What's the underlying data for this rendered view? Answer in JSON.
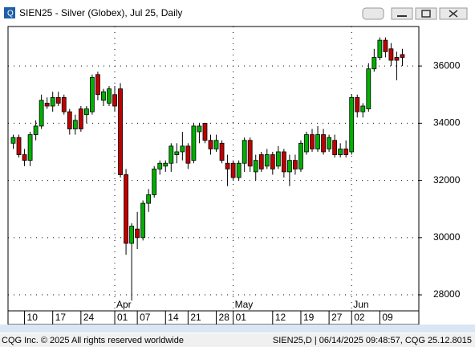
{
  "window": {
    "title": "SIEN25 - Silver (Globex), Jul 25, Daily"
  },
  "status": {
    "left": "CQG Inc. © 2025 All rights reserved worldwide",
    "right": "SIEN25,D | 06/14/2025 09:48:57, CQG 25.12.8015"
  },
  "chart_data": {
    "type": "candlestick",
    "categories": [
      null,
      null,
      "10",
      null,
      null,
      null,
      null,
      "17",
      null,
      null,
      null,
      null,
      "24",
      null,
      null,
      null,
      null,
      null,
      "01",
      null,
      null,
      null,
      "07",
      null,
      null,
      null,
      null,
      "14",
      null,
      null,
      null,
      "21",
      null,
      null,
      null,
      null,
      "28",
      null,
      null,
      "01",
      null,
      null,
      null,
      null,
      null,
      null,
      "12",
      null,
      null,
      null,
      null,
      "19",
      null,
      null,
      null,
      null,
      "27",
      null,
      null,
      null,
      "02",
      null,
      null,
      null,
      null,
      "09",
      null,
      null,
      null,
      null
    ],
    "months": [
      {
        "label": "Apr",
        "category": 18
      },
      {
        "label": "May",
        "category": 39
      },
      {
        "label": "Jun",
        "category": 60
      }
    ],
    "open": [
      33300,
      33500,
      32900,
      32700,
      33600,
      33900,
      34700,
      34600,
      34900,
      34900,
      34400,
      33800,
      34500,
      34300,
      34400,
      35700,
      34800,
      34700,
      35000,
      35200,
      32200,
      29800,
      30300,
      30000,
      31200,
      31500,
      32400,
      32500,
      32600,
      32900,
      33000,
      33200,
      32700,
      33700,
      34000,
      33400,
      33100,
      33300,
      32600,
      32600,
      32100,
      32600,
      33400,
      32300,
      32900,
      32500,
      32900,
      32500,
      33000,
      32300,
      32700,
      32400,
      33000,
      33600,
      33100,
      33600,
      33100,
      33400,
      32900,
      33100,
      33000,
      34900,
      34400,
      34500,
      35900,
      36300,
      36900,
      36600,
      36300,
      36400
    ],
    "high": [
      33600,
      33600,
      33100,
      33700,
      34100,
      35000,
      34900,
      35100,
      35100,
      35000,
      34500,
      34300,
      34600,
      34600,
      35700,
      35800,
      35200,
      35300,
      35300,
      35400,
      32400,
      30500,
      30900,
      31300,
      31700,
      32500,
      32700,
      32700,
      33300,
      33300,
      33700,
      33300,
      34000,
      34000,
      34000,
      33600,
      33600,
      33400,
      32900,
      32700,
      32700,
      33500,
      33500,
      32900,
      33000,
      33100,
      33000,
      33200,
      33100,
      32900,
      32900,
      33400,
      33700,
      33800,
      33900,
      33800,
      33600,
      33600,
      33300,
      33400,
      35000,
      35000,
      34700,
      36100,
      36600,
      37000,
      37000,
      36800,
      36500,
      36600
    ],
    "low": [
      33100,
      32800,
      32500,
      32500,
      33400,
      33800,
      34500,
      34400,
      34600,
      34300,
      33600,
      33600,
      33700,
      34000,
      34300,
      34800,
      34600,
      34600,
      34400,
      32100,
      29400,
      27800,
      29600,
      29900,
      30900,
      31400,
      32200,
      32300,
      32300,
      32600,
      32700,
      32400,
      32600,
      33300,
      33300,
      32900,
      33000,
      32600,
      31800,
      32000,
      32000,
      32300,
      32300,
      32000,
      32300,
      32400,
      32200,
      32400,
      32100,
      31800,
      32200,
      32300,
      32900,
      33000,
      33000,
      32900,
      33000,
      32800,
      32800,
      32800,
      32900,
      34200,
      34200,
      34400,
      35800,
      36200,
      36300,
      36000,
      35500,
      36000
    ],
    "close": [
      33500,
      32900,
      32700,
      33600,
      33900,
      34800,
      34600,
      34900,
      34700,
      34400,
      33800,
      34100,
      33800,
      34500,
      35600,
      35000,
      35100,
      35200,
      34600,
      32200,
      29800,
      30400,
      30000,
      31200,
      31500,
      32400,
      32600,
      32600,
      33200,
      33000,
      33200,
      32600,
      33900,
      33900,
      33400,
      33100,
      33400,
      32700,
      32400,
      32100,
      32600,
      33400,
      32500,
      32700,
      32400,
      32900,
      32400,
      33000,
      32300,
      32700,
      32400,
      33300,
      33600,
      33100,
      33600,
      33000,
      33500,
      32900,
      33100,
      32900,
      34900,
      34400,
      34600,
      35900,
      36300,
      36900,
      36500,
      36200,
      36200,
      36300
    ],
    "up_color": "#00b000",
    "down_color": "#c00000",
    "ylim": [
      27440,
      37380
    ],
    "yticks": [
      28000,
      30000,
      32000,
      34000,
      36000
    ],
    "y_axis_side": "right",
    "grid": true
  }
}
